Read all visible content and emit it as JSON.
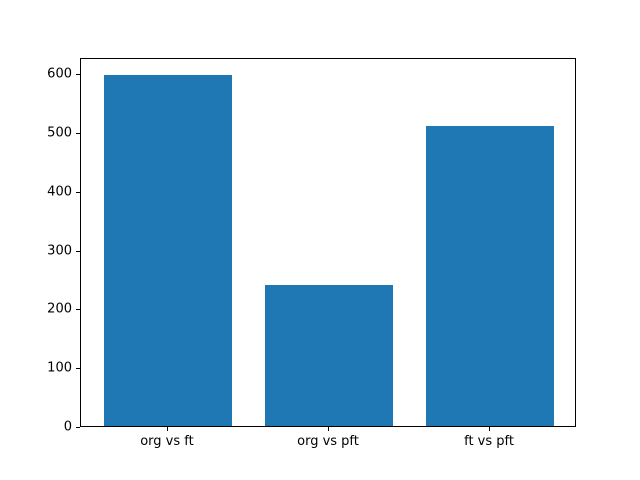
{
  "figure": {
    "background": "#ffffff",
    "bar_color": "#1f77b4",
    "spine_color": "#000000",
    "text_color": "#000000"
  },
  "chart_data": {
    "type": "bar",
    "title": "",
    "xlabel": "",
    "ylabel": "",
    "categories": [
      "org vs ft",
      "org vs pft",
      "ft vs pft"
    ],
    "values": [
      598,
      240,
      510
    ],
    "ylim": [
      0,
      628
    ],
    "yticks": [
      0,
      100,
      200,
      300,
      400,
      500,
      600
    ],
    "grid": false,
    "legend": false,
    "bar_width_fraction": 0.8
  }
}
